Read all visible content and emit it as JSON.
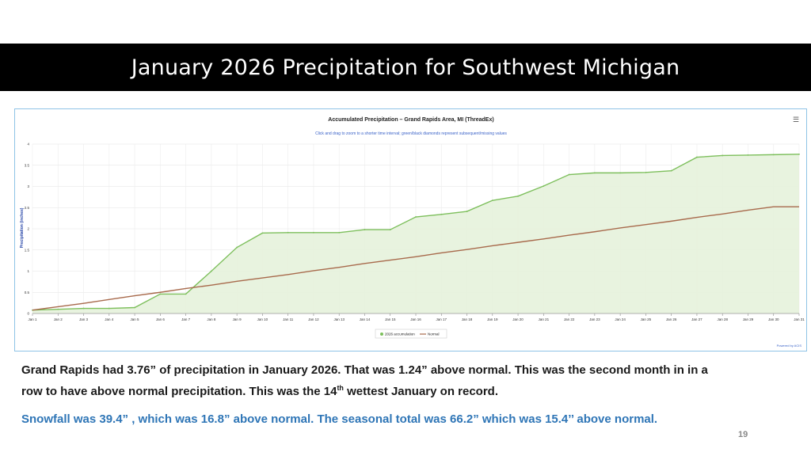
{
  "slide": {
    "title": "January 2026 Precipitation for Southwest Michigan",
    "page_number": "19",
    "paragraph1": {
      "a": "Grand Rapids had 3.76” of precipitation in January 2026. That was 1.24” above normal.  This was the second month in in a row to have above normal precipitation.   This was the 14",
      "sup": "th",
      "b": " wettest January on record."
    },
    "paragraph2": "Snowfall was 39.4” , which was 16.8” above normal.  The seasonal total was 66.2” which was 15.4’’ above normal."
  },
  "chart_data": {
    "type": "area",
    "title": "Accumulated Precipitation – Grand Rapids Area, MI (ThreadEx)",
    "subtitle": "Click and drag to zoom to a shorter time interval; green/black diamonds represent subsequent/missing values",
    "ylabel": "Precipitation (inches)",
    "xlabel": "",
    "ylim": [
      0,
      4
    ],
    "yticks": [
      "0",
      "0.5",
      "1",
      "1.5",
      "2",
      "2.5",
      "3",
      "3.5",
      "4"
    ],
    "categories": [
      "Jan 1",
      "Jan 2",
      "Jan 3",
      "Jan 4",
      "Jan 5",
      "Jan 6",
      "Jan 7",
      "Jan 8",
      "Jan 9",
      "Jan 10",
      "Jan 11",
      "Jan 12",
      "Jan 13",
      "Jan 14",
      "Jan 15",
      "Jan 16",
      "Jan 17",
      "Jan 18",
      "Jan 19",
      "Jan 20",
      "Jan 21",
      "Jan 22",
      "Jan 23",
      "Jan 24",
      "Jan 25",
      "Jan 26",
      "Jan 27",
      "Jan 28",
      "Jan 29",
      "Jan 30",
      "Jan 31"
    ],
    "series": [
      {
        "name": "2026 accumulation",
        "color": "#7dbf5c",
        "values": [
          0.08,
          0.1,
          0.12,
          0.12,
          0.14,
          0.46,
          0.46,
          1.0,
          1.56,
          1.9,
          1.91,
          1.91,
          1.91,
          1.98,
          1.98,
          2.28,
          2.34,
          2.41,
          2.67,
          2.77,
          3.01,
          3.28,
          3.32,
          3.32,
          3.33,
          3.37,
          3.69,
          3.73,
          3.74,
          3.75,
          3.76
        ]
      },
      {
        "name": "Normal",
        "color": "#a86a4c",
        "values": [
          0.08,
          0.16,
          0.24,
          0.33,
          0.42,
          0.5,
          0.59,
          0.67,
          0.76,
          0.84,
          0.92,
          1.01,
          1.09,
          1.18,
          1.26,
          1.34,
          1.43,
          1.51,
          1.6,
          1.68,
          1.76,
          1.85,
          1.93,
          2.02,
          2.1,
          2.18,
          2.27,
          2.35,
          2.44,
          2.52,
          2.52
        ]
      }
    ],
    "grid": true,
    "legend_position": "bottom-center",
    "credit": "Powered by ACIS"
  }
}
